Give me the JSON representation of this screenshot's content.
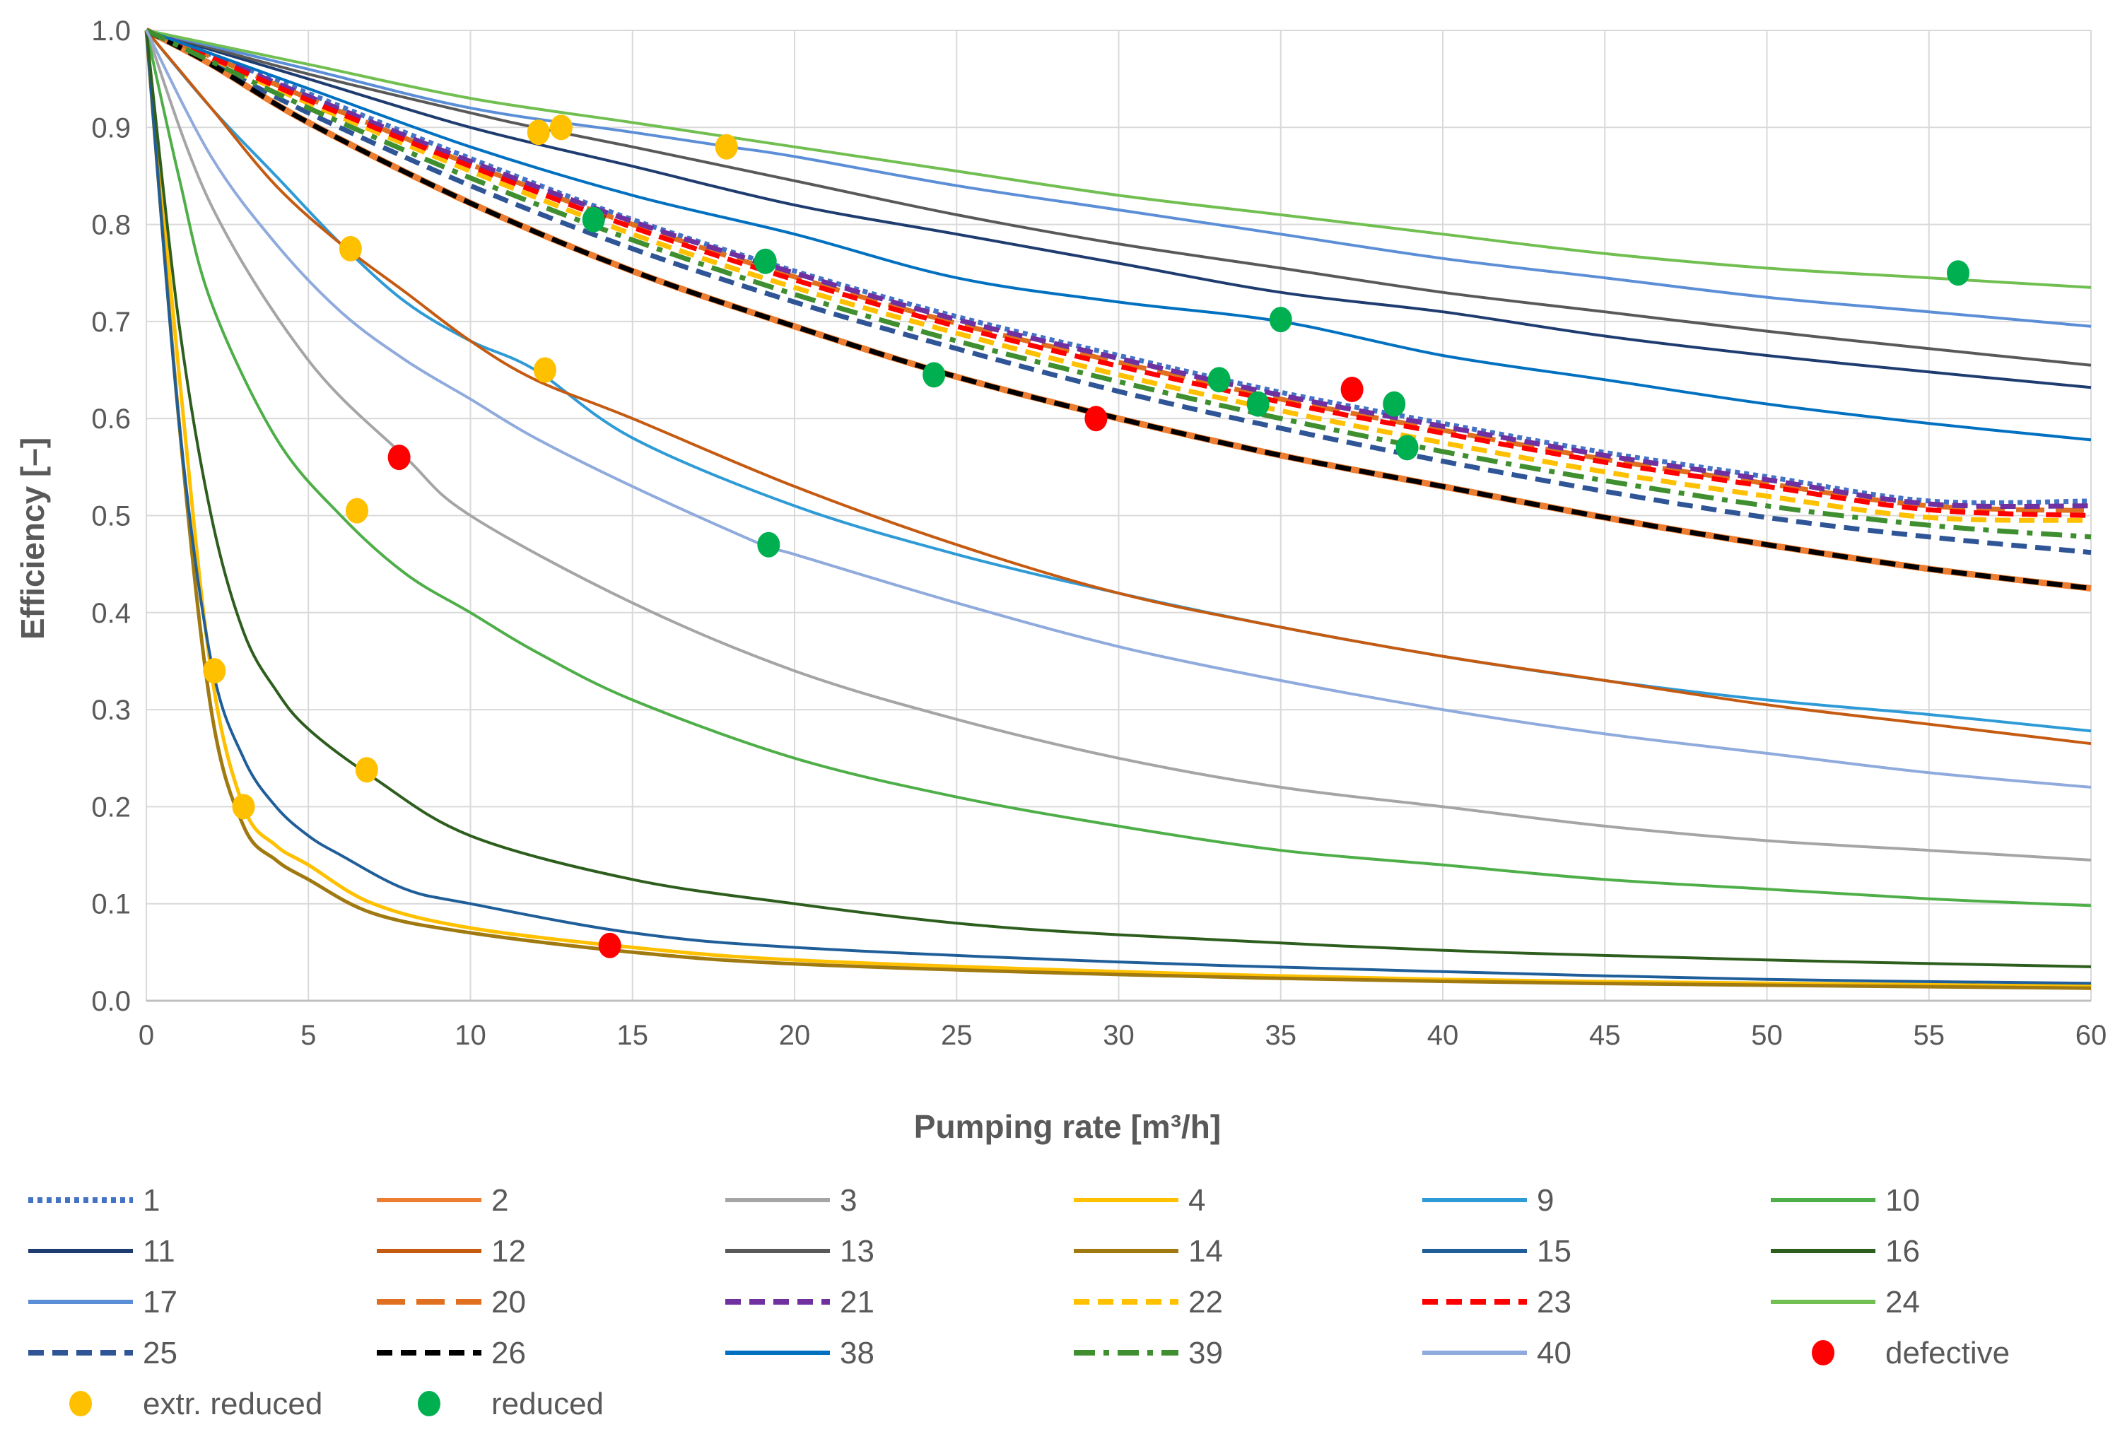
{
  "chart_data": {
    "type": "line",
    "title": "",
    "xlabel": "Pumping rate [m³/h]",
    "ylabel": "Efficiency [–]",
    "xlim": [
      0,
      60
    ],
    "ylim": [
      0,
      1.0
    ],
    "x_ticks": [
      "0",
      "5",
      "10",
      "15",
      "20",
      "25",
      "30",
      "35",
      "40",
      "45",
      "50",
      "55",
      "60"
    ],
    "y_ticks": [
      "0.0",
      "0.1",
      "0.2",
      "0.3",
      "0.4",
      "0.5",
      "0.6",
      "0.7",
      "0.8",
      "0.9",
      "1.0"
    ],
    "grid": true,
    "legend_position": "bottom",
    "series": [
      {
        "name": "1",
        "color": "#4472C4",
        "dash": "dot",
        "width": 7,
        "x": [
          0,
          2,
          5,
          10,
          15,
          20,
          25,
          30,
          35,
          40,
          45,
          50,
          55,
          60
        ],
        "y": [
          1.0,
          0.975,
          0.935,
          0.868,
          0.805,
          0.752,
          0.705,
          0.665,
          0.627,
          0.595,
          0.565,
          0.54,
          0.515,
          0.515
        ]
      },
      {
        "name": "2",
        "color": "#ED7D31",
        "dash": "solid",
        "width": 9,
        "x": [
          0,
          2,
          5,
          10,
          15,
          20,
          25,
          30,
          35,
          40,
          45,
          50,
          55,
          60
        ],
        "y": [
          1.0,
          0.965,
          0.905,
          0.822,
          0.752,
          0.695,
          0.643,
          0.6,
          0.562,
          0.53,
          0.498,
          0.47,
          0.445,
          0.425
        ]
      },
      {
        "name": "3",
        "color": "#A5A5A5",
        "dash": "solid",
        "width": 4,
        "x": [
          0,
          2,
          5,
          8,
          10,
          15,
          20,
          25,
          30,
          35,
          40,
          45,
          50,
          55,
          60
        ],
        "y": [
          1.0,
          0.82,
          0.66,
          0.56,
          0.5,
          0.41,
          0.34,
          0.29,
          0.25,
          0.22,
          0.2,
          0.18,
          0.165,
          0.155,
          0.145
        ]
      },
      {
        "name": "4",
        "color": "#FFC000",
        "dash": "solid",
        "width": 5,
        "x": [
          0,
          1,
          2,
          3,
          4,
          5,
          7,
          10,
          15,
          20,
          30,
          40,
          50,
          60
        ],
        "y": [
          1.0,
          0.65,
          0.34,
          0.2,
          0.16,
          0.14,
          0.1,
          0.075,
          0.055,
          0.042,
          0.03,
          0.022,
          0.018,
          0.015
        ]
      },
      {
        "name": "9",
        "color": "#2E9BD6",
        "dash": "solid",
        "width": 4,
        "x": [
          0,
          2,
          4,
          6,
          8,
          10,
          12,
          15,
          20,
          25,
          30,
          35,
          40,
          45,
          50,
          55,
          60
        ],
        "y": [
          1.0,
          0.92,
          0.85,
          0.78,
          0.72,
          0.68,
          0.65,
          0.58,
          0.51,
          0.46,
          0.42,
          0.385,
          0.355,
          0.33,
          0.31,
          0.295,
          0.278
        ]
      },
      {
        "name": "10",
        "color": "#4EAE48",
        "dash": "solid",
        "width": 4,
        "x": [
          0,
          1,
          2,
          4,
          6,
          8,
          10,
          12,
          15,
          20,
          25,
          30,
          35,
          40,
          45,
          50,
          55,
          60
        ],
        "y": [
          1.0,
          0.85,
          0.72,
          0.58,
          0.5,
          0.44,
          0.4,
          0.36,
          0.31,
          0.25,
          0.21,
          0.18,
          0.155,
          0.14,
          0.125,
          0.115,
          0.105,
          0.098
        ]
      },
      {
        "name": "11",
        "color": "#1F3C70",
        "dash": "solid",
        "width": 4,
        "x": [
          0,
          5,
          10,
          15,
          20,
          25,
          30,
          35,
          40,
          45,
          50,
          55,
          60
        ],
        "y": [
          1.0,
          0.95,
          0.9,
          0.86,
          0.82,
          0.79,
          0.76,
          0.73,
          0.71,
          0.685,
          0.665,
          0.648,
          0.632
        ]
      },
      {
        "name": "12",
        "color": "#C55A11",
        "dash": "solid",
        "width": 4,
        "x": [
          0,
          2,
          4,
          6,
          8,
          10,
          12,
          15,
          20,
          25,
          30,
          35,
          40,
          45,
          50,
          55,
          60
        ],
        "y": [
          1.0,
          0.92,
          0.84,
          0.78,
          0.73,
          0.68,
          0.64,
          0.6,
          0.53,
          0.47,
          0.42,
          0.385,
          0.355,
          0.33,
          0.305,
          0.285,
          0.265
        ]
      },
      {
        "name": "13",
        "color": "#595959",
        "dash": "solid",
        "width": 4,
        "x": [
          0,
          5,
          10,
          12,
          15,
          20,
          25,
          30,
          35,
          40,
          45,
          50,
          55,
          60
        ],
        "y": [
          1.0,
          0.955,
          0.915,
          0.9,
          0.88,
          0.845,
          0.81,
          0.78,
          0.755,
          0.73,
          0.71,
          0.69,
          0.672,
          0.655
        ]
      },
      {
        "name": "14",
        "color": "#A07A10",
        "dash": "solid",
        "width": 5,
        "x": [
          0,
          1,
          2,
          3,
          4,
          5,
          7,
          10,
          15,
          20,
          30,
          40,
          50,
          60
        ],
        "y": [
          1.0,
          0.6,
          0.3,
          0.18,
          0.145,
          0.125,
          0.09,
          0.07,
          0.05,
          0.038,
          0.027,
          0.02,
          0.016,
          0.013
        ]
      },
      {
        "name": "15",
        "color": "#1F5E99",
        "dash": "solid",
        "width": 4,
        "x": [
          0,
          1,
          2,
          3,
          4,
          5,
          6,
          8,
          10,
          15,
          20,
          30,
          40,
          50,
          60
        ],
        "y": [
          1.0,
          0.6,
          0.35,
          0.25,
          0.2,
          0.17,
          0.15,
          0.115,
          0.1,
          0.07,
          0.055,
          0.04,
          0.03,
          0.022,
          0.018
        ]
      },
      {
        "name": "16",
        "color": "#2E5E1E",
        "dash": "solid",
        "width": 4,
        "x": [
          0,
          1,
          2,
          3,
          4,
          5,
          7,
          10,
          15,
          20,
          25,
          30,
          40,
          50,
          60
        ],
        "y": [
          1.0,
          0.7,
          0.5,
          0.38,
          0.32,
          0.28,
          0.23,
          0.17,
          0.125,
          0.1,
          0.08,
          0.068,
          0.052,
          0.042,
          0.035
        ]
      },
      {
        "name": "17",
        "color": "#5B8ED6",
        "dash": "solid",
        "width": 4,
        "x": [
          0,
          5,
          10,
          15,
          18,
          20,
          25,
          30,
          35,
          40,
          45,
          50,
          55,
          60
        ],
        "y": [
          1.0,
          0.96,
          0.92,
          0.895,
          0.88,
          0.87,
          0.84,
          0.815,
          0.79,
          0.765,
          0.745,
          0.725,
          0.71,
          0.695
        ]
      },
      {
        "name": "20",
        "color": "#E07020",
        "dash": "longdash",
        "width": 7,
        "x": [
          0,
          2,
          5,
          10,
          15,
          20,
          25,
          30,
          35,
          40,
          45,
          50,
          55,
          60
        ],
        "y": [
          1.0,
          0.973,
          0.93,
          0.862,
          0.8,
          0.746,
          0.698,
          0.658,
          0.62,
          0.588,
          0.558,
          0.533,
          0.51,
          0.505
        ]
      },
      {
        "name": "21",
        "color": "#7030A0",
        "dash": "dash",
        "width": 7,
        "x": [
          0,
          2,
          5,
          10,
          15,
          20,
          25,
          30,
          35,
          40,
          45,
          50,
          55,
          60
        ],
        "y": [
          1.0,
          0.974,
          0.932,
          0.865,
          0.803,
          0.75,
          0.702,
          0.662,
          0.624,
          0.592,
          0.562,
          0.537,
          0.512,
          0.51
        ]
      },
      {
        "name": "22",
        "color": "#FFC000",
        "dash": "dash",
        "width": 7,
        "x": [
          0,
          2,
          5,
          10,
          15,
          20,
          25,
          30,
          35,
          40,
          45,
          50,
          55,
          60
        ],
        "y": [
          1.0,
          0.97,
          0.925,
          0.855,
          0.79,
          0.735,
          0.688,
          0.645,
          0.608,
          0.575,
          0.545,
          0.52,
          0.498,
          0.495
        ]
      },
      {
        "name": "23",
        "color": "#FF0000",
        "dash": "dash",
        "width": 7,
        "x": [
          0,
          2,
          5,
          10,
          15,
          20,
          25,
          30,
          35,
          40,
          45,
          50,
          55,
          60
        ],
        "y": [
          1.0,
          0.972,
          0.928,
          0.86,
          0.797,
          0.743,
          0.695,
          0.654,
          0.617,
          0.585,
          0.555,
          0.53,
          0.506,
          0.5
        ]
      },
      {
        "name": "24",
        "color": "#70BF50",
        "dash": "solid",
        "width": 4,
        "x": [
          0,
          5,
          10,
          15,
          20,
          25,
          30,
          35,
          40,
          45,
          50,
          55,
          60
        ],
        "y": [
          1.0,
          0.965,
          0.93,
          0.905,
          0.88,
          0.855,
          0.83,
          0.81,
          0.79,
          0.77,
          0.755,
          0.745,
          0.735
        ]
      },
      {
        "name": "25",
        "color": "#2F5597",
        "dash": "dash",
        "width": 7,
        "x": [
          0,
          2,
          5,
          10,
          15,
          20,
          25,
          30,
          35,
          40,
          45,
          50,
          55,
          60
        ],
        "y": [
          1.0,
          0.966,
          0.915,
          0.84,
          0.775,
          0.72,
          0.672,
          0.628,
          0.59,
          0.556,
          0.525,
          0.498,
          0.478,
          0.462
        ]
      },
      {
        "name": "26",
        "color": "#000000",
        "dash": "dash",
        "width": 7,
        "x": [
          0,
          2,
          5,
          10,
          15,
          20,
          25,
          30,
          35,
          40,
          45,
          50,
          55,
          60
        ],
        "y": [
          1.0,
          0.965,
          0.905,
          0.822,
          0.752,
          0.695,
          0.643,
          0.6,
          0.562,
          0.53,
          0.498,
          0.47,
          0.445,
          0.425
        ]
      },
      {
        "name": "38",
        "color": "#0070C0",
        "dash": "solid",
        "width": 4,
        "x": [
          0,
          5,
          10,
          15,
          20,
          25,
          30,
          35,
          40,
          45,
          50,
          55,
          60
        ],
        "y": [
          1.0,
          0.94,
          0.88,
          0.83,
          0.79,
          0.745,
          0.72,
          0.7,
          0.665,
          0.64,
          0.615,
          0.595,
          0.578
        ]
      },
      {
        "name": "39",
        "color": "#3F8F30",
        "dash": "dashdot",
        "width": 7,
        "x": [
          0,
          2,
          5,
          10,
          15,
          20,
          25,
          30,
          35,
          40,
          45,
          50,
          55,
          60
        ],
        "y": [
          1.0,
          0.968,
          0.92,
          0.848,
          0.784,
          0.728,
          0.68,
          0.638,
          0.6,
          0.566,
          0.536,
          0.51,
          0.49,
          0.478
        ]
      },
      {
        "name": "40",
        "color": "#8FAADC",
        "dash": "solid",
        "width": 4,
        "x": [
          0,
          2,
          4,
          6,
          8,
          10,
          12,
          15,
          19,
          20,
          25,
          30,
          35,
          40,
          45,
          50,
          55,
          60
        ],
        "y": [
          1.0,
          0.87,
          0.78,
          0.71,
          0.66,
          0.62,
          0.58,
          0.53,
          0.47,
          0.46,
          0.41,
          0.365,
          0.33,
          0.3,
          0.275,
          0.255,
          0.235,
          0.22
        ]
      }
    ],
    "markers": [
      {
        "name": "defective",
        "color": "#FF0000",
        "points": [
          [
            7.8,
            0.56
          ],
          [
            14.3,
            0.057
          ],
          [
            29.3,
            0.6
          ],
          [
            37.2,
            0.63
          ]
        ]
      },
      {
        "name": "extr. reduced",
        "color": "#FFC000",
        "points": [
          [
            2.1,
            0.34
          ],
          [
            3.0,
            0.2
          ],
          [
            6.3,
            0.775
          ],
          [
            6.5,
            0.505
          ],
          [
            6.8,
            0.238
          ],
          [
            12.1,
            0.895
          ],
          [
            12.3,
            0.65
          ],
          [
            12.8,
            0.9
          ],
          [
            17.9,
            0.88
          ]
        ]
      },
      {
        "name": "reduced",
        "color": "#00B050",
        "points": [
          [
            13.8,
            0.805
          ],
          [
            19.1,
            0.762
          ],
          [
            19.2,
            0.47
          ],
          [
            24.3,
            0.645
          ],
          [
            33.1,
            0.64
          ],
          [
            34.3,
            0.615
          ],
          [
            35.0,
            0.702
          ],
          [
            38.5,
            0.615
          ],
          [
            38.9,
            0.57
          ],
          [
            55.9,
            0.75
          ]
        ]
      }
    ],
    "legend": [
      "1",
      "2",
      "3",
      "4",
      "9",
      "10",
      "11",
      "12",
      "13",
      "14",
      "15",
      "16",
      "17",
      "20",
      "21",
      "22",
      "23",
      "24",
      "25",
      "26",
      "38",
      "39",
      "40",
      "defective",
      "extr. reduced",
      "reduced"
    ]
  }
}
